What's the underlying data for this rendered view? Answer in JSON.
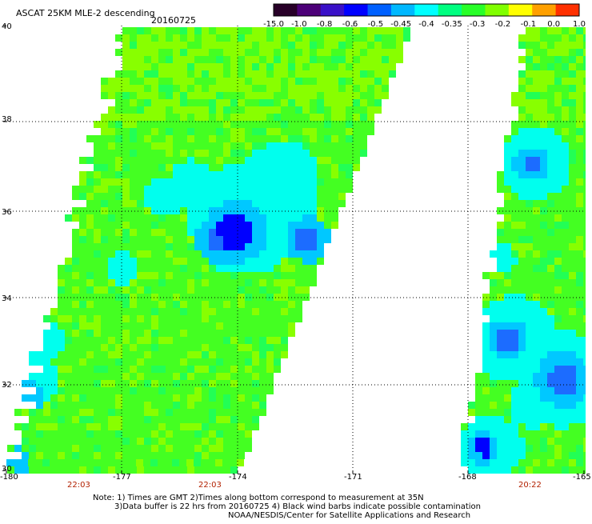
{
  "title": "ASCAT 25KM MLE-2 descending",
  "date": "20160725",
  "colorbar": {
    "labels": [
      "-15.0",
      "-1.0",
      "-0.8",
      "-0.6",
      "-0.5",
      "-0.45",
      "-0.4",
      "-0.35",
      "-0.3",
      "-0.2",
      "-0.1",
      "0.0",
      "1.0"
    ],
    "stops": [
      "#280028",
      "#4c0078",
      "#3a10c8",
      "#0000ff",
      "#0060ff",
      "#00b8ff",
      "#00ffff",
      "#00ff80",
      "#28ff28",
      "#80ff00",
      "#ffff00",
      "#ffa000",
      "#ff3000"
    ]
  },
  "axes": {
    "lon_ticks": [
      "-180",
      "-177",
      "-174",
      "-171",
      "-168",
      "-165"
    ],
    "lat_ticks": [
      "40",
      "38",
      "36",
      "34",
      "32",
      "30"
    ]
  },
  "swath_times": [
    "22:03",
    "22:03",
    "20:22"
  ],
  "notes": [
    "Note: 1) Times are GMT 2)Times along bottom correspond to measurement at 35N",
    "3)Data buffer is 22 hrs from 20160725 4) Black wind barbs indicate possible contamination",
    "NOAA/NESDIS/Center for Satellite Applications and Research"
  ],
  "palette": {
    "green": "#44ff22",
    "yellow_green": "#88ff00",
    "bright_green": "#22ff55",
    "cyan": "#00ffee",
    "light_blue": "#00c8ff",
    "mid_blue": "#1c6cff",
    "deep_blue": "#0000ff"
  }
}
